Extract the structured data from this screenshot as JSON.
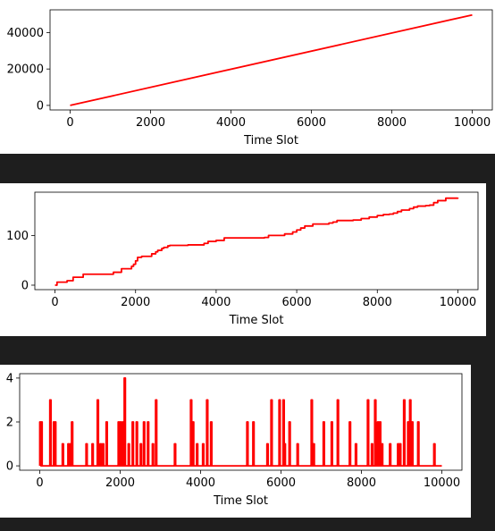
{
  "colors": {
    "line": "#ff0000",
    "axis": "#000000",
    "background": "#1e1e1e",
    "panel": "#ffffff"
  },
  "chart_data": [
    {
      "type": "line",
      "title": "",
      "xlabel": "Time Slot",
      "ylabel": "",
      "xlim": [
        -500,
        10500
      ],
      "ylim": [
        -2500,
        52500
      ],
      "xticks": [
        0,
        2000,
        4000,
        6000,
        8000,
        10000
      ],
      "yticks": [
        0,
        20000,
        40000
      ],
      "grid": false,
      "series": [
        {
          "x": [
            0,
            10000
          ],
          "y": [
            0,
            49700
          ]
        }
      ]
    },
    {
      "type": "line",
      "title": "",
      "xlabel": "Time Slot",
      "ylabel": "",
      "xlim": [
        -500,
        10500
      ],
      "ylim": [
        -9,
        187
      ],
      "xticks": [
        0,
        2000,
        4000,
        6000,
        8000,
        10000
      ],
      "yticks": [
        0,
        100
      ],
      "grid": false,
      "series": [
        {
          "step": true,
          "x": [
            0,
            50,
            300,
            450,
            700,
            1450,
            1650,
            1900,
            1950,
            2000,
            2050,
            2150,
            2400,
            2500,
            2550,
            2650,
            2700,
            2800,
            2850,
            3300,
            3700,
            3800,
            4000,
            4200,
            5200,
            5300,
            5700,
            5900,
            6000,
            6100,
            6200,
            6400,
            6800,
            6900,
            7000,
            7400,
            7600,
            7800,
            8000,
            8150,
            8300,
            8400,
            8500,
            8600,
            8800,
            8900,
            9000,
            9200,
            9300,
            9400,
            9500,
            9700,
            10000
          ],
          "y": [
            0,
            6,
            9,
            16,
            22,
            26,
            33,
            38,
            42,
            49,
            56,
            58,
            63,
            67,
            70,
            74,
            76,
            79,
            80,
            81,
            84,
            88,
            90,
            95,
            96,
            100,
            103,
            107,
            111,
            115,
            119,
            123,
            125,
            127,
            130,
            131,
            134,
            137,
            140,
            142,
            143,
            145,
            148,
            151,
            154,
            157,
            159,
            160,
            161,
            166,
            170,
            175,
            176
          ]
        }
      ]
    },
    {
      "type": "line",
      "title": "",
      "xlabel": "Time Slot",
      "ylabel": "",
      "xlim": [
        -500,
        10500
      ],
      "ylim": [
        -0.2,
        4.2
      ],
      "xticks": [
        0,
        2000,
        4000,
        6000,
        8000,
        10000
      ],
      "yticks": [
        0,
        2,
        4
      ],
      "grid": false,
      "series": [
        {
          "spikes": true,
          "events": [
            [
              0,
              2
            ],
            [
              30,
              2
            ],
            [
              250,
              3
            ],
            [
              340,
              2
            ],
            [
              370,
              2
            ],
            [
              560,
              1
            ],
            [
              700,
              1
            ],
            [
              750,
              1
            ],
            [
              790,
              2
            ],
            [
              1150,
              1
            ],
            [
              1300,
              1
            ],
            [
              1430,
              3
            ],
            [
              1500,
              1
            ],
            [
              1560,
              1
            ],
            [
              1650,
              2
            ],
            [
              1950,
              2
            ],
            [
              2000,
              2
            ],
            [
              2060,
              2
            ],
            [
              2100,
              4
            ],
            [
              2200,
              1
            ],
            [
              2300,
              2
            ],
            [
              2400,
              2
            ],
            [
              2500,
              1
            ],
            [
              2580,
              2
            ],
            [
              2680,
              2
            ],
            [
              2800,
              1
            ],
            [
              2880,
              3
            ],
            [
              3350,
              1
            ],
            [
              3750,
              3
            ],
            [
              3800,
              2
            ],
            [
              3900,
              1
            ],
            [
              4050,
              1
            ],
            [
              4150,
              3
            ],
            [
              4250,
              2
            ],
            [
              5150,
              2
            ],
            [
              5300,
              2
            ],
            [
              5650,
              1
            ],
            [
              5750,
              3
            ],
            [
              5950,
              3
            ],
            [
              6050,
              3
            ],
            [
              6080,
              1
            ],
            [
              6200,
              2
            ],
            [
              6400,
              1
            ],
            [
              6750,
              3
            ],
            [
              6800,
              1
            ],
            [
              7050,
              2
            ],
            [
              7250,
              2
            ],
            [
              7400,
              3
            ],
            [
              7700,
              2
            ],
            [
              7850,
              1
            ],
            [
              8150,
              3
            ],
            [
              8250,
              1
            ],
            [
              8330,
              3
            ],
            [
              8400,
              2
            ],
            [
              8450,
              2
            ],
            [
              8500,
              1
            ],
            [
              8700,
              1
            ],
            [
              8900,
              1
            ],
            [
              8950,
              1
            ],
            [
              9050,
              3
            ],
            [
              9150,
              2
            ],
            [
              9200,
              3
            ],
            [
              9250,
              2
            ],
            [
              9400,
              2
            ],
            [
              9800,
              1
            ]
          ]
        }
      ]
    }
  ]
}
